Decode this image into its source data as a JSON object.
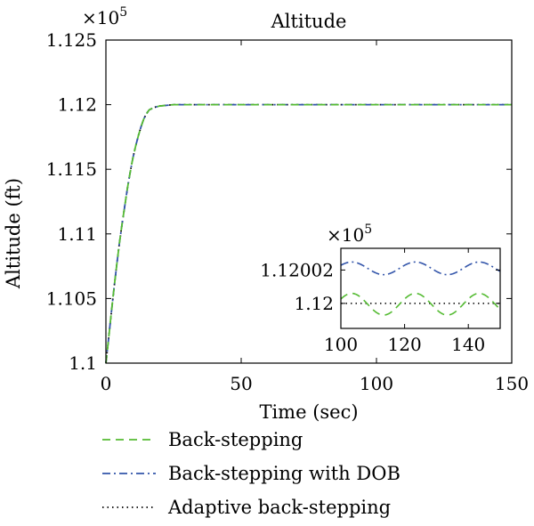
{
  "chart_data": {
    "type": "line",
    "title": "Altitude",
    "xlabel": "Time (sec)",
    "ylabel": "Altitude (ft)",
    "y_multiplier_base": "×10",
    "y_multiplier_exp": "5",
    "xlim": [
      0,
      150
    ],
    "ylim": [
      1.1,
      1.125
    ],
    "x_ticks": [
      0,
      50,
      100,
      150
    ],
    "x_tick_labels": [
      "0",
      "50",
      "100",
      "150"
    ],
    "y_ticks": [
      1.1,
      1.105,
      1.11,
      1.115,
      1.12,
      1.125
    ],
    "y_tick_labels": [
      "1.1",
      "1.105",
      "1.11",
      "1.115",
      "1.12",
      "1.125"
    ],
    "grid": false,
    "legend_position": "below",
    "series": [
      {
        "name": "Back-stepping",
        "color": "#55bb33",
        "dash": "dashed",
        "x": [
          0,
          1,
          2,
          3,
          4,
          5,
          6,
          7,
          8,
          9,
          10,
          11,
          12,
          13,
          14,
          15,
          16,
          18,
          20,
          25,
          30,
          40,
          60,
          80,
          100,
          120,
          150
        ],
        "y": [
          1.1,
          1.1019,
          1.1039,
          1.1058,
          1.1076,
          1.1093,
          1.1108,
          1.1122,
          1.1136,
          1.1148,
          1.1159,
          1.1168,
          1.1176,
          1.1183,
          1.1189,
          1.1193,
          1.1196,
          1.1198,
          1.1199,
          1.12,
          1.12,
          1.12,
          1.12,
          1.12,
          1.12,
          1.12,
          1.12
        ]
      },
      {
        "name": "Back-stepping with DOB",
        "color": "#3355aa",
        "dash": "dashdot",
        "x": [
          0,
          1,
          2,
          3,
          4,
          5,
          6,
          7,
          8,
          9,
          10,
          11,
          12,
          13,
          14,
          15,
          16,
          18,
          20,
          25,
          30,
          40,
          60,
          80,
          100,
          120,
          150
        ],
        "y": [
          1.1,
          1.1019,
          1.1039,
          1.1058,
          1.1076,
          1.1093,
          1.1108,
          1.1122,
          1.1136,
          1.1148,
          1.1159,
          1.1168,
          1.1176,
          1.1183,
          1.1189,
          1.1193,
          1.1196,
          1.1198,
          1.1199,
          1.12,
          1.12,
          1.12,
          1.12,
          1.12,
          1.12,
          1.12,
          1.12
        ]
      },
      {
        "name": "Adaptive back-stepping",
        "color": "#000000",
        "dash": "dotted",
        "x": [
          0,
          1,
          2,
          3,
          4,
          5,
          6,
          7,
          8,
          9,
          10,
          11,
          12,
          13,
          14,
          15,
          16,
          18,
          20,
          25,
          30,
          40,
          60,
          80,
          100,
          120,
          150
        ],
        "y": [
          1.1,
          1.1019,
          1.1039,
          1.1058,
          1.1076,
          1.1093,
          1.1108,
          1.1122,
          1.1136,
          1.1148,
          1.1159,
          1.1168,
          1.1176,
          1.1183,
          1.1189,
          1.1193,
          1.1196,
          1.1198,
          1.1199,
          1.12,
          1.12,
          1.12,
          1.12,
          1.12,
          1.12,
          1.12,
          1.12
        ]
      }
    ],
    "inset": {
      "y_multiplier_base": "×10",
      "y_multiplier_exp": "5",
      "xlim": [
        100,
        150
      ],
      "ylim": [
        1.119985,
        1.120033
      ],
      "x_ticks": [
        100,
        120,
        140
      ],
      "x_tick_labels": [
        "100",
        "120",
        "140"
      ],
      "y_ticks": [
        1.12,
        1.12002
      ],
      "y_tick_labels": [
        "1.12",
        "1.12002"
      ],
      "series": [
        {
          "name": "Back-stepping",
          "mean": 1.1199995,
          "amplitude": 6.5e-06,
          "period": 20,
          "phase": 0.5
        },
        {
          "name": "Back-stepping with DOB",
          "mean": 1.120021,
          "amplitude": 3.8e-06,
          "period": 20,
          "phase": 0.5
        },
        {
          "name": "Adaptive back-stepping",
          "mean": 1.12,
          "amplitude": 0,
          "period": 20,
          "phase": 0
        }
      ]
    }
  }
}
